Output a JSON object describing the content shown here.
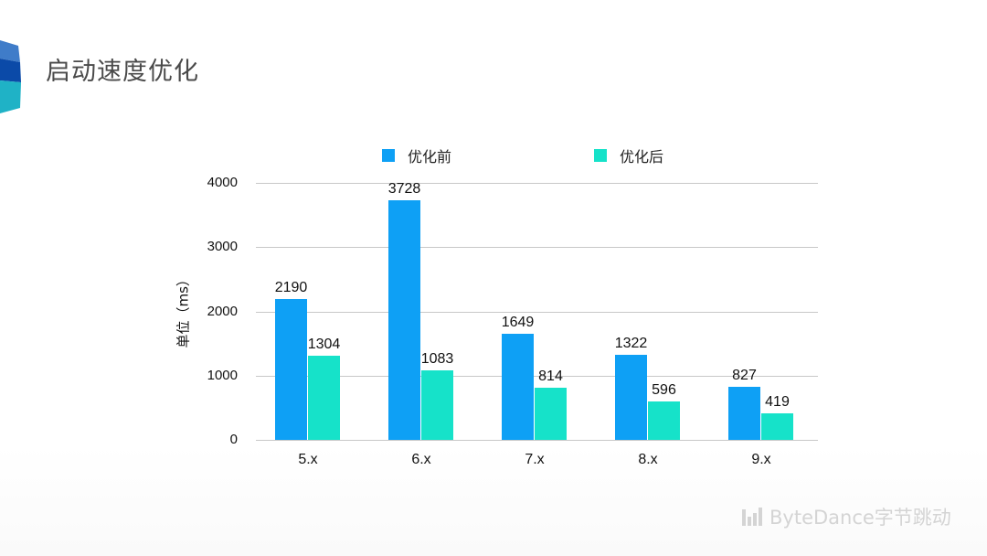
{
  "slide": {
    "title": "启动速度优化",
    "watermark": "ByteDance字节跳动"
  },
  "colors": {
    "before": "#0ea0f5",
    "after": "#16e2c9",
    "grid": "#c8c8c8",
    "logo_top": "#3f7cc9",
    "logo_mid": "#0b4aa8",
    "logo_bottom": "#1fb2c6"
  },
  "chart_data": {
    "type": "bar",
    "title": "",
    "xlabel": "",
    "ylabel": "单位（ms）",
    "ylim": [
      0,
      4000
    ],
    "yticks": [
      "0",
      "1000",
      "2000",
      "3000",
      "4000"
    ],
    "grid": true,
    "legend_position": "top",
    "categories": [
      "5.x",
      "6.x",
      "7.x",
      "8.x",
      "9.x"
    ],
    "series": [
      {
        "name": "优化前",
        "values": [
          2190,
          3728,
          1649,
          1322,
          827
        ]
      },
      {
        "name": "优化后",
        "values": [
          1304,
          1083,
          814,
          596,
          419
        ]
      }
    ]
  }
}
